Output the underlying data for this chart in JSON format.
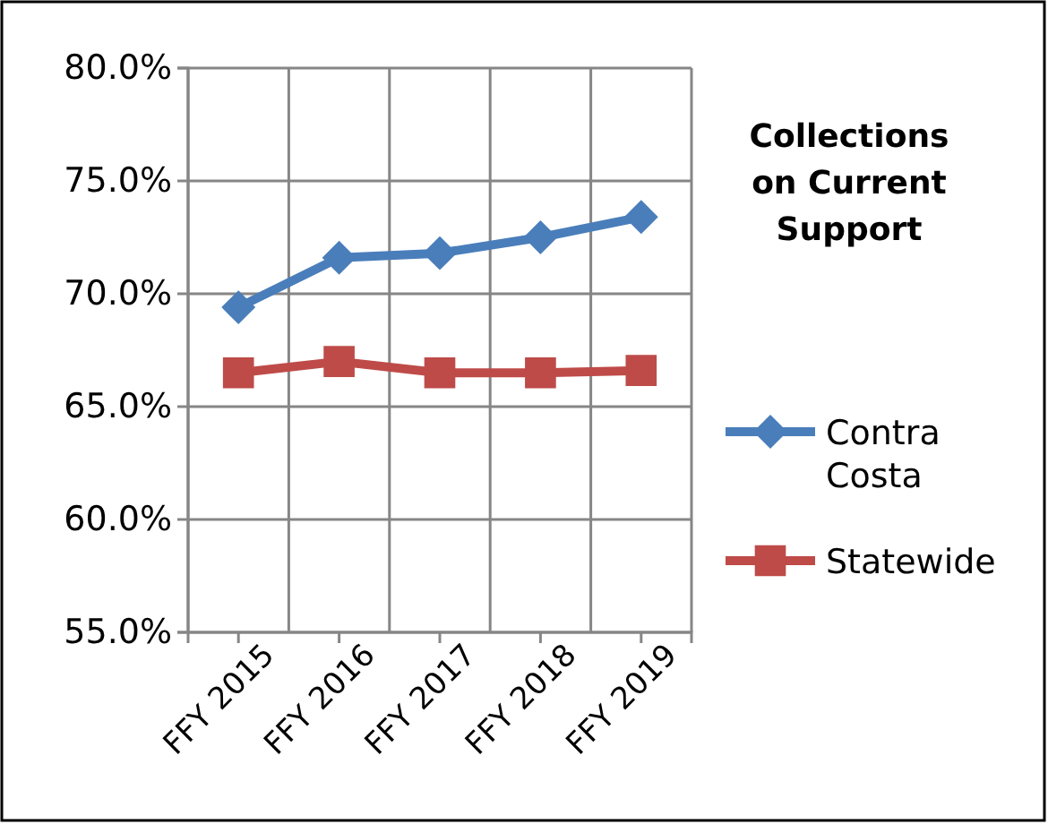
{
  "chart_data": {
    "type": "line",
    "title": "Collections on Current Support",
    "categories": [
      "FFY 2015",
      "FFY 2016",
      "FFY 2017",
      "FFY 2018",
      "FFY 2019"
    ],
    "series": [
      {
        "name": "Contra Costa",
        "color": "#4a7ebb",
        "values": [
          69.4,
          71.6,
          71.8,
          72.5,
          73.4
        ],
        "marker": "diamond"
      },
      {
        "name": "Statewide",
        "color": "#be4b48",
        "values": [
          66.5,
          67.0,
          66.5,
          66.5,
          66.6
        ],
        "marker": "square"
      }
    ],
    "ylim": [
      55,
      80
    ],
    "yticks": [
      {
        "value": 55,
        "label": "55.0%"
      },
      {
        "value": 60,
        "label": "60.0%"
      },
      {
        "value": 65,
        "label": "65.0%"
      },
      {
        "value": 70,
        "label": "70.0%"
      },
      {
        "value": 75,
        "label": "75.0%"
      },
      {
        "value": 80,
        "label": "80.0%"
      }
    ],
    "grid": true,
    "legend": "right",
    "line_style": "solid"
  }
}
